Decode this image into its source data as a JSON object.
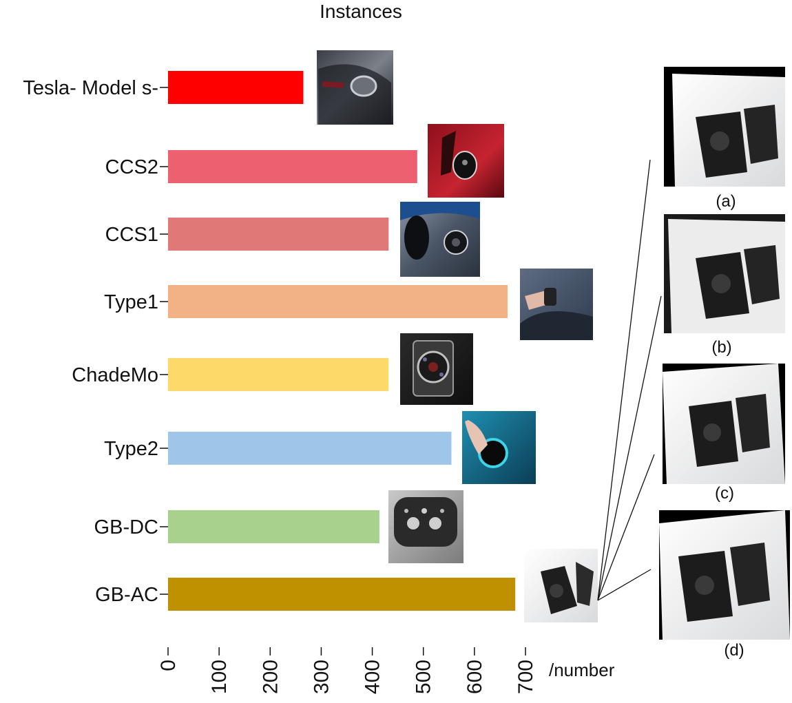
{
  "chart_data": {
    "type": "bar",
    "orientation": "horizontal",
    "title": "Instances",
    "xlabel": "/number",
    "ylabel": "",
    "xlim": [
      0,
      700
    ],
    "grid": false,
    "legend": "none",
    "categories": [
      "Tesla- Model s-",
      "CCS2",
      "CCS1",
      "Type1",
      "ChadeMo",
      "Type2",
      "GB-DC",
      "GB-AC"
    ],
    "values": [
      265,
      488,
      432,
      665,
      432,
      555,
      414,
      680
    ],
    "colors": [
      "#ff0000",
      "#ec6070",
      "#e07878",
      "#f3b186",
      "#fdd96a",
      "#9fc5e8",
      "#a8d18d",
      "#bf9000"
    ],
    "xticks": [
      0,
      100,
      200,
      300,
      400,
      500,
      600,
      700
    ],
    "xtick_labels": [
      "0",
      "100",
      "200",
      "300",
      "400",
      "500",
      "600",
      "700"
    ]
  },
  "samples": {
    "thumbnail_icons": [
      "tesla-port-photo",
      "ccs2-port-photo",
      "ccs1-port-photo",
      "type1-port-photo",
      "chademo-port-photo",
      "type2-port-photo",
      "gbdc-port-photo",
      "gbac-port-photo"
    ],
    "augmentations": [
      {
        "label": "(a)"
      },
      {
        "label": "(b)"
      },
      {
        "label": "(c)"
      },
      {
        "label": "(d)"
      }
    ]
  }
}
